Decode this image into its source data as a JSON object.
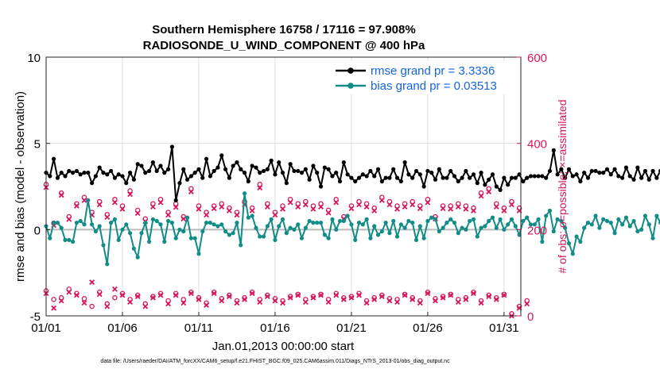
{
  "chart_data": {
    "type": "line",
    "title": "Southern Hemisphere 16758 / 17116 = 97.908%",
    "subtitle": "RADIOSONDE_U_WIND_COMPONENT @ 400 hPa",
    "xlabel": "Jan.01,2013 00:00:00 start",
    "ylabel": "rmse and bias (model - observation)",
    "y2label": "# of obs: o=possible; ×=assimilated",
    "xlim": [
      0,
      31.1
    ],
    "ylim": [
      -5,
      10
    ],
    "y2lim": [
      0,
      600
    ],
    "x_ticks": [
      {
        "value": 0,
        "label": "01/01"
      },
      {
        "value": 5,
        "label": "01/06"
      },
      {
        "value": 10,
        "label": "01/11"
      },
      {
        "value": 15,
        "label": "01/16"
      },
      {
        "value": 20,
        "label": "01/21"
      },
      {
        "value": 25,
        "label": "01/26"
      },
      {
        "value": 30,
        "label": "01/31"
      }
    ],
    "y_ticks": [
      {
        "value": -5,
        "label": "-5"
      },
      {
        "value": 0,
        "label": "0"
      },
      {
        "value": 5,
        "label": "5"
      },
      {
        "value": 10,
        "label": "10"
      }
    ],
    "y2_ticks": [
      {
        "value": 0,
        "label": "0"
      },
      {
        "value": 200,
        "label": "200"
      },
      {
        "value": 400,
        "label": "400"
      },
      {
        "value": 600,
        "label": "600"
      }
    ],
    "grid": true,
    "legend_position": "top-right",
    "x_step": 0.25,
    "series": [
      {
        "name": "rmse grand pr = 3.3336",
        "color": "#000000",
        "axis": "left",
        "values": [
          3.3,
          3.1,
          4.1,
          3.0,
          3.3,
          3.1,
          3.4,
          3.3,
          3.4,
          3.2,
          3.3,
          3.3,
          2.7,
          3.1,
          3.6,
          3.3,
          3.2,
          3.4,
          3.0,
          3.2,
          3.1,
          2.7,
          3.3,
          2.9,
          3.8,
          3.7,
          3.3,
          3.4,
          3.9,
          3.4,
          3.7,
          3.3,
          3.5,
          4.8,
          1.7,
          2.7,
          3.5,
          2.9,
          3.1,
          3.3,
          3.5,
          3.0,
          4.1,
          3.1,
          3.4,
          3.6,
          4.3,
          3.5,
          3.0,
          3.7,
          3.9,
          3.5,
          3.3,
          2.8,
          3.7,
          3.6,
          3.3,
          3.4,
          3.5,
          4.0,
          3.2,
          3.9,
          3.3,
          2.7,
          3.8,
          3.4,
          3.4,
          3.3,
          3.5,
          2.9,
          3.7,
          3.3,
          2.5,
          3.6,
          3.5,
          3.1,
          3.3,
          2.8,
          3.9,
          3.2,
          3.0,
          2.8,
          3.0,
          3.2,
          3.1,
          3.4,
          3.1,
          3.5,
          2.8,
          3.0,
          3.0,
          3.5,
          3.0,
          2.8,
          3.9,
          3.2,
          3.0,
          3.4,
          3.2,
          2.5,
          3.4,
          3.3,
          2.9,
          3.5,
          3.0,
          3.0,
          3.4,
          3.1,
          2.8,
          3.0,
          3.4,
          3.0,
          3.2,
          2.7,
          3.3,
          2.6,
          2.9,
          3.2,
          2.5,
          2.3,
          3.0,
          2.6,
          3.0,
          3.0,
          3.2,
          2.8,
          3.0,
          3.1,
          3.1,
          3.1,
          3.1,
          3.0,
          3.4,
          4.6,
          3.2,
          3.5,
          3.0,
          3.5,
          3.1,
          3.2,
          2.8,
          3.3,
          3.0,
          3.4,
          3.4,
          3.3,
          3.3,
          3.5,
          3.2,
          3.5,
          3.1,
          3.0,
          3.6,
          3.1,
          2.9,
          3.6,
          3.0,
          3.4,
          2.9,
          3.4,
          3.0,
          3.4,
          3.2,
          3.3,
          2.9,
          3.0,
          3.4,
          2.8,
          3.3,
          3.3,
          3.4,
          2.6,
          3.4,
          3.2,
          3.1,
          3.0,
          3.4,
          2.5,
          3.0,
          2.4,
          2.5,
          2.9,
          3.4,
          3.1,
          3.4,
          3.3,
          3.6,
          3.4,
          3.5,
          3.2,
          3.8
        ]
      },
      {
        "name": "bias grand pr = 0.03513",
        "color": "#118c87",
        "axis": "left",
        "values": [
          0.2,
          -0.5,
          0.4,
          0.4,
          0.1,
          -0.6,
          -0.6,
          -0.7,
          0.4,
          0.5,
          0.3,
          1.7,
          0.3,
          -0.1,
          0.2,
          -0.9,
          -2.0,
          0.4,
          0.6,
          -0.6,
          0.0,
          0.3,
          -0.2,
          -1.1,
          -1.6,
          -0.2,
          0.4,
          -0.7,
          0.6,
          0.5,
          0.3,
          -0.7,
          0.5,
          0.4,
          -0.5,
          0.0,
          -0.1,
          0.7,
          -0.5,
          -0.5,
          -1.4,
          -0.1,
          0.4,
          0.4,
          0.3,
          0.2,
          0.3,
          -0.1,
          -0.3,
          -0.2,
          0.4,
          -0.9,
          2.1,
          0.7,
          0.8,
          0.1,
          -0.4,
          -0.4,
          0.2,
          0.6,
          -0.6,
          0.2,
          0.6,
          -0.2,
          0.1,
          0.0,
          0.3,
          -0.5,
          0.1,
          0.5,
          0.4,
          0.4,
          0.4,
          -0.3,
          -0.5,
          0.6,
          0.0,
          0.5,
          0.5,
          0.8,
          0.3,
          -0.6,
          0.4,
          0.3,
          0.6,
          -0.5,
          0.2,
          -0.3,
          -0.1,
          0.4,
          -0.2,
          0.5,
          -0.4,
          0.3,
          0.1,
          0.5,
          0.4,
          -0.6,
          0.2,
          -0.5,
          0.5,
          0.7,
          0.6,
          -0.1,
          0.1,
          0.4,
          0.6,
          0.4,
          -0.2,
          0.1,
          0.0,
          0.5,
          0.6,
          -0.4,
          0.1,
          0.2,
          0.5,
          0.7,
          0.1,
          0.6,
          0.0,
          0.3,
          0.6,
          0.2,
          -0.3,
          0.5,
          0.7,
          0.3,
          0.3,
          0.6,
          -0.7,
          0.8,
          1.1,
          -0.1,
          0.6,
          0.5,
          0.1,
          -0.8,
          -1.4,
          -0.4,
          -0.7,
          0.1,
          0.4,
          0.3,
          0.8,
          0.1,
          0.6,
          0.5,
          0.4,
          -0.2,
          0.6,
          0.3,
          0.7,
          0.2,
          0.5,
          -0.1,
          0.0,
          0.8,
          0.3,
          -0.5,
          0.8,
          0.4,
          0.2,
          0.7,
          0.4,
          -0.2,
          0.3,
          0.5,
          -0.2,
          0.6,
          0.4,
          0.1,
          0.4,
          -0.2,
          0.2,
          0.3,
          -0.3,
          0.3,
          0.4,
          0.2,
          -0.3,
          0.2,
          0.9,
          0.5,
          -0.3,
          0.3,
          0.6,
          0.4,
          0.2,
          0.5,
          0.3,
          0.1,
          0.5,
          -0.2,
          0.6,
          1.7
        ]
      }
    ],
    "obs_counts": {
      "axis": "right",
      "color": "#d6185e",
      "high": {
        "name": "obs (00Z/12Z)",
        "x_step": 0.5,
        "possible": [
          305,
          215,
          285,
          230,
          260,
          275,
          240,
          265,
          235,
          270,
          255,
          290,
          245,
          225,
          260,
          270,
          240,
          260,
          230,
          295,
          255,
          240,
          255,
          260,
          250,
          240,
          265,
          250,
          305,
          260,
          240,
          255,
          270,
          260,
          265,
          255,
          260,
          245,
          270,
          230,
          255,
          265,
          260,
          250,
          275,
          265,
          255,
          260,
          265,
          255,
          270,
          230,
          255,
          255,
          260,
          255,
          250,
          285,
          295,
          260,
          250,
          265,
          250
        ],
        "assimilated": [
          298,
          210,
          280,
          224,
          255,
          268,
          234,
          258,
          229,
          263,
          248,
          282,
          238,
          219,
          253,
          263,
          234,
          252,
          225,
          288,
          248,
          234,
          249,
          253,
          244,
          234,
          258,
          244,
          297,
          253,
          234,
          248,
          263,
          253,
          258,
          248,
          253,
          239,
          263,
          225,
          249,
          258,
          253,
          244,
          268,
          258,
          248,
          253,
          258,
          249,
          263,
          225,
          249,
          248,
          253,
          248,
          244,
          278,
          288,
          253,
          244,
          258,
          244
        ]
      },
      "low": {
        "name": "obs (06Z/18Z)",
        "x_step": 0.5,
        "possible": [
          58,
          38,
          42,
          62,
          52,
          40,
          22,
          55,
          28,
          42,
          52,
          38,
          48,
          28,
          45,
          52,
          35,
          52,
          38,
          55,
          42,
          30,
          55,
          40,
          48,
          35,
          42,
          55,
          38,
          48,
          40,
          35,
          45,
          50,
          38,
          45,
          50,
          38,
          52,
          42,
          45,
          52,
          35,
          42,
          48,
          40,
          38,
          50,
          42,
          35,
          55,
          40,
          45,
          50,
          38,
          42,
          55,
          35,
          48,
          42,
          50,
          5,
          22,
          35
        ],
        "assimilated": [
          52,
          18,
          35,
          55,
          48,
          30,
          78,
          50,
          22,
          62,
          48,
          32,
          45,
          22,
          42,
          48,
          28,
          48,
          30,
          52,
          38,
          25,
          52,
          35,
          45,
          30,
          38,
          52,
          32,
          45,
          35,
          30,
          42,
          48,
          32,
          42,
          48,
          32,
          48,
          38,
          42,
          48,
          30,
          38,
          45,
          35,
          32,
          48,
          38,
          30,
          52,
          35,
          42,
          48,
          32,
          38,
          52,
          30,
          45,
          38,
          48,
          0,
          18,
          28
        ]
      }
    }
  },
  "footer": {
    "data_file": "data file: /Users/raeder/DAI/ATM_forcXX/CAM6_setup/f.e21.FHIST_BGC.f09_025.CAM6assim.011/Diags_NTrS_2013-01/obs_diag_output.nc"
  }
}
